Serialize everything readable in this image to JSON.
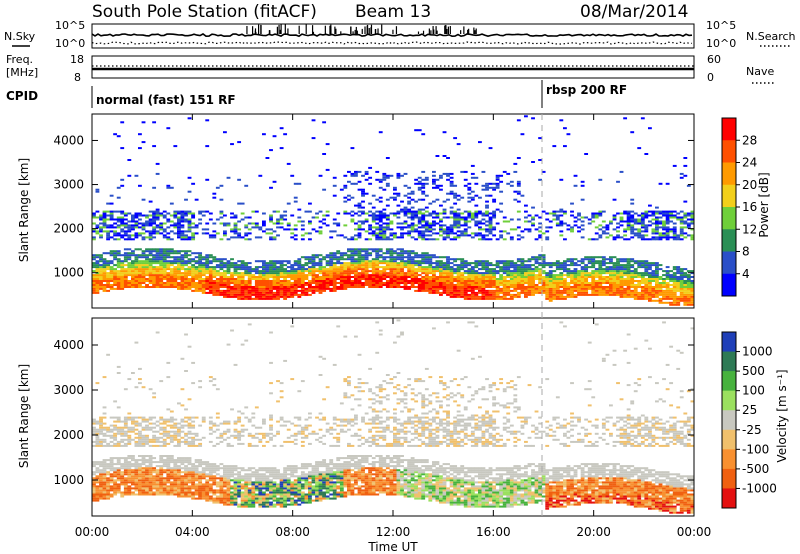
{
  "header": {
    "station": "South Pole Station (fitACF)",
    "beam": "Beam 13",
    "date": "08/Mar/2014"
  },
  "noise_panel": {
    "left_label": "N.Sky",
    "right_label": "N.Search",
    "tick_top": "10^5",
    "tick_bottom": "10^0"
  },
  "freq_panel": {
    "left_label_1": "Freq.",
    "left_label_2": "[MHz]",
    "left_ticks": [
      "18",
      "8"
    ],
    "right_label": "Nave",
    "right_ticks": [
      "60",
      "0"
    ]
  },
  "cpid_panel": {
    "label": "CPID",
    "modes": [
      {
        "name": "normal (fast) 151 RF",
        "start_hour": 0
      },
      {
        "name": "rbsp 200 RF",
        "start_hour": 18
      }
    ]
  },
  "chart_data": [
    {
      "type": "heatmap",
      "title": "Power",
      "xlabel": "",
      "ylabel": "Slant Range [km]",
      "xlim_hours": [
        0,
        24
      ],
      "ylim": [
        200,
        4600
      ],
      "x_tick_labels": [
        "00:00",
        "04:00",
        "08:00",
        "12:00",
        "16:00",
        "20:00",
        "00:00"
      ],
      "y_ticks": [
        1000,
        2000,
        3000,
        4000
      ],
      "colorbar": {
        "label": "Power [dB]",
        "ticks": [
          "28",
          "24",
          "20",
          "16",
          "12",
          "8",
          "4"
        ],
        "colors": [
          "#ff0000",
          "#ff5000",
          "#ff9a00",
          "#f2cf1b",
          "#6fcf3a",
          "#2a8f55",
          "#2a4fc8",
          "#0000ff"
        ]
      }
    },
    {
      "type": "heatmap",
      "title": "Velocity",
      "xlabel": "Time UT",
      "ylabel": "Slant Range [km]",
      "xlim_hours": [
        0,
        24
      ],
      "ylim": [
        200,
        4600
      ],
      "x_tick_labels": [
        "00:00",
        "04:00",
        "08:00",
        "12:00",
        "16:00",
        "20:00",
        "00:00"
      ],
      "y_ticks": [
        1000,
        2000,
        3000,
        4000
      ],
      "colorbar": {
        "label": "Velocity [m s⁻¹]",
        "ticks": [
          "1000",
          "500",
          "100",
          "25",
          "-25",
          "-100",
          "-500",
          "-1000"
        ],
        "colors": [
          "#1f3fb8",
          "#2e7a55",
          "#47b23e",
          "#9be05f",
          "#c8c8c0",
          "#f0c06c",
          "#f89030",
          "#f06010",
          "#e41010"
        ]
      }
    }
  ]
}
